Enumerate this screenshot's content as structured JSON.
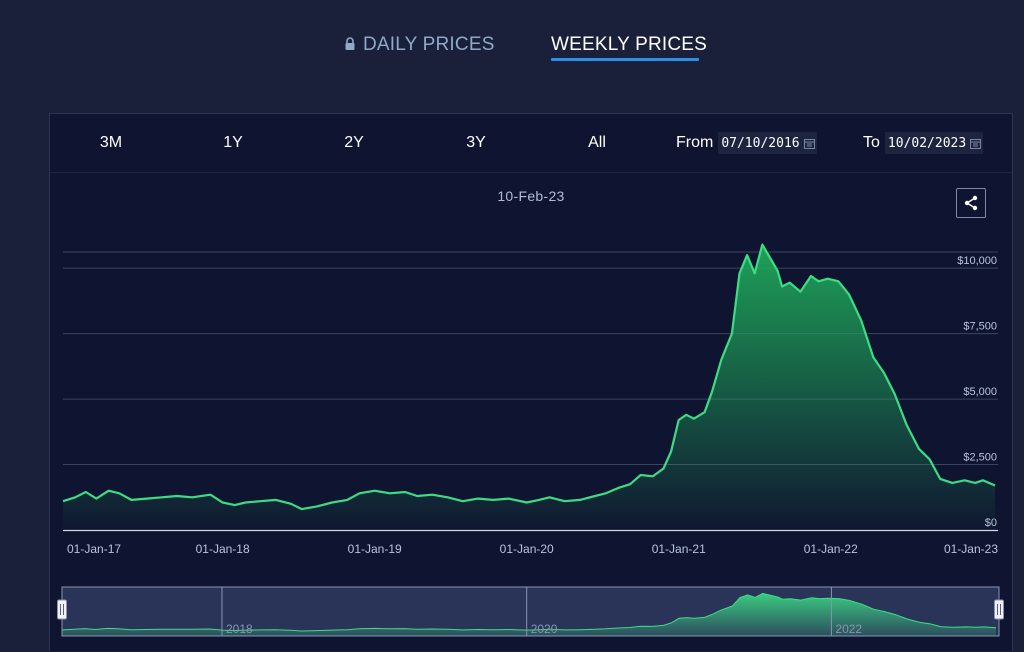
{
  "tabs": {
    "daily_label": "DAILY PRICES",
    "weekly_label": "WEEKLY PRICES",
    "daily_icon": "lock-icon"
  },
  "toolbar": {
    "ranges": [
      "3M",
      "1Y",
      "2Y",
      "3Y",
      "All"
    ],
    "from_label": "From",
    "from_value": "07/10/2016",
    "to_label": "To",
    "to_value": "10/02/2023",
    "calendar_icon": "calendar-icon"
  },
  "chart": {
    "date_label": "10-Feb-23",
    "share_icon": "share-icon"
  },
  "colors": {
    "line": "#3ddc84",
    "fill_top": "#1fa85a",
    "background": "#0f1530",
    "navigator": "#2a3458"
  },
  "chart_data": {
    "type": "area",
    "ylim": [
      0,
      11000
    ],
    "y_ticks": [
      {
        "value": 0,
        "label": "$0"
      },
      {
        "value": 2500,
        "label": "$2,500"
      },
      {
        "value": 5000,
        "label": "$5,000"
      },
      {
        "value": 7500,
        "label": "$7,500"
      },
      {
        "value": 10000,
        "label": "$10,000"
      }
    ],
    "x_range": [
      2016.95,
      2023.1
    ],
    "x_ticks": [
      {
        "value": 2017.0,
        "label": "01-Jan-17"
      },
      {
        "value": 2018.0,
        "label": "01-Jan-18"
      },
      {
        "value": 2019.0,
        "label": "01-Jan-19"
      },
      {
        "value": 2020.0,
        "label": "01-Jan-20"
      },
      {
        "value": 2021.0,
        "label": "01-Jan-21"
      },
      {
        "value": 2022.0,
        "label": "01-Jan-22"
      },
      {
        "value": 2023.0,
        "label": "01-Jan-23"
      }
    ],
    "navigator_ticks": [
      {
        "value": 2018.0,
        "label": "2018"
      },
      {
        "value": 2020.0,
        "label": "2020"
      },
      {
        "value": 2022.0,
        "label": "2022"
      }
    ],
    "points": [
      [
        2016.95,
        1100
      ],
      [
        2017.03,
        1250
      ],
      [
        2017.1,
        1450
      ],
      [
        2017.17,
        1200
      ],
      [
        2017.25,
        1500
      ],
      [
        2017.32,
        1400
      ],
      [
        2017.4,
        1150
      ],
      [
        2017.5,
        1200
      ],
      [
        2017.6,
        1250
      ],
      [
        2017.7,
        1300
      ],
      [
        2017.8,
        1250
      ],
      [
        2017.92,
        1350
      ],
      [
        2018.0,
        1050
      ],
      [
        2018.08,
        950
      ],
      [
        2018.15,
        1050
      ],
      [
        2018.25,
        1100
      ],
      [
        2018.35,
        1150
      ],
      [
        2018.45,
        1000
      ],
      [
        2018.52,
        800
      ],
      [
        2018.62,
        900
      ],
      [
        2018.72,
        1050
      ],
      [
        2018.82,
        1150
      ],
      [
        2018.9,
        1400
      ],
      [
        2019.0,
        1500
      ],
      [
        2019.1,
        1400
      ],
      [
        2019.2,
        1450
      ],
      [
        2019.28,
        1300
      ],
      [
        2019.38,
        1350
      ],
      [
        2019.48,
        1250
      ],
      [
        2019.58,
        1100
      ],
      [
        2019.68,
        1200
      ],
      [
        2019.78,
        1150
      ],
      [
        2019.88,
        1200
      ],
      [
        2020.0,
        1050
      ],
      [
        2020.08,
        1150
      ],
      [
        2020.15,
        1250
      ],
      [
        2020.25,
        1100
      ],
      [
        2020.35,
        1150
      ],
      [
        2020.45,
        1300
      ],
      [
        2020.52,
        1400
      ],
      [
        2020.6,
        1600
      ],
      [
        2020.68,
        1750
      ],
      [
        2020.75,
        2100
      ],
      [
        2020.83,
        2050
      ],
      [
        2020.9,
        2350
      ],
      [
        2020.95,
        3000
      ],
      [
        2021.0,
        4200
      ],
      [
        2021.05,
        4400
      ],
      [
        2021.1,
        4250
      ],
      [
        2021.17,
        4500
      ],
      [
        2021.22,
        5300
      ],
      [
        2021.28,
        6500
      ],
      [
        2021.35,
        7500
      ],
      [
        2021.4,
        9800
      ],
      [
        2021.45,
        10500
      ],
      [
        2021.5,
        9800
      ],
      [
        2021.55,
        10900
      ],
      [
        2021.6,
        10400
      ],
      [
        2021.65,
        9900
      ],
      [
        2021.68,
        9300
      ],
      [
        2021.73,
        9450
      ],
      [
        2021.8,
        9100
      ],
      [
        2021.87,
        9700
      ],
      [
        2021.92,
        9500
      ],
      [
        2021.98,
        9600
      ],
      [
        2022.05,
        9500
      ],
      [
        2022.12,
        9000
      ],
      [
        2022.2,
        8000
      ],
      [
        2022.28,
        6600
      ],
      [
        2022.35,
        6000
      ],
      [
        2022.42,
        5200
      ],
      [
        2022.5,
        4000
      ],
      [
        2022.58,
        3100
      ],
      [
        2022.65,
        2700
      ],
      [
        2022.72,
        1950
      ],
      [
        2022.8,
        1800
      ],
      [
        2022.88,
        1900
      ],
      [
        2022.95,
        1800
      ],
      [
        2023.0,
        1900
      ],
      [
        2023.08,
        1700
      ]
    ]
  }
}
